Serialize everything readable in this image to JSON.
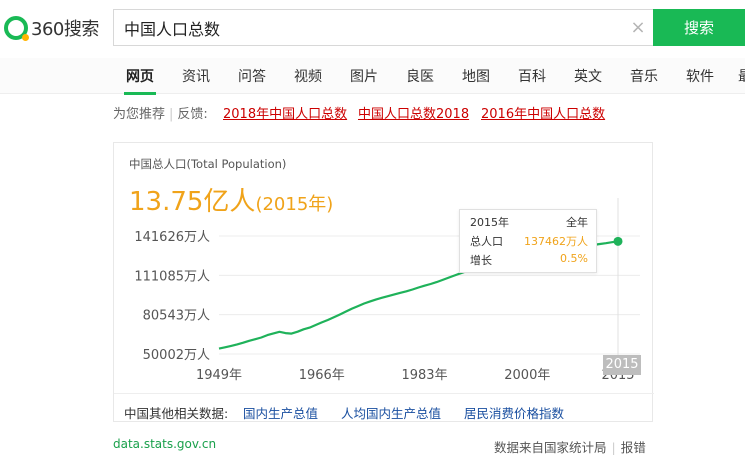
{
  "header": {
    "logo_text": "360搜索",
    "search_value": "中国人口总数",
    "search_button": "搜索",
    "clear_glyph": "×"
  },
  "nav": {
    "items": [
      "网页",
      "资讯",
      "问答",
      "视频",
      "图片",
      "良医",
      "地图",
      "百科",
      "英文",
      "音乐",
      "软件",
      "最"
    ]
  },
  "recommend": {
    "label": "为您推荐",
    "sep": "|",
    "feedback": "反馈:",
    "links": [
      "2018年中国人口总数",
      "中国人口总数2018",
      "2016年中国人口总数"
    ]
  },
  "card": {
    "title": "中国总人口(Total Population)",
    "big_value": "13.75亿人",
    "big_year": "(2015年)",
    "tooltip": {
      "year": "2015年",
      "scope": "全年",
      "total_label": "总人口",
      "total_value": "137462万人",
      "growth_label": "增长",
      "growth_value": "0.5%"
    },
    "year_badge": "2015",
    "related_label": "中国其他相关数据:",
    "related_links": [
      "国内生产总值",
      "人均国内生产总值",
      "居民消费价格指数"
    ]
  },
  "footer": {
    "source_link": "data.stats.gov.cn",
    "source_note": "数据来自国家统计局",
    "sep": "|",
    "report": "报错"
  },
  "colors": {
    "brand_green": "#19b955",
    "highlight_orange": "#f0a31a",
    "link_red": "#cc0000",
    "link_blue": "#1a4fa0",
    "line_green": "#1fb25a"
  },
  "chart_data": {
    "type": "line",
    "title": "中国总人口(Total Population)",
    "xlabel": "",
    "ylabel": "",
    "x_ticks": [
      "1949年",
      "1966年",
      "1983年",
      "2000年",
      "2015"
    ],
    "y_ticks": [
      "50002万人",
      "80543万人",
      "111085万人",
      "141626万人"
    ],
    "y_tick_values": [
      50002,
      80543,
      111085,
      141626
    ],
    "ylim": [
      50002,
      141626
    ],
    "xlim": [
      1949,
      2015
    ],
    "grid": true,
    "series": [
      {
        "x": [
          1949,
          1950,
          1951,
          1952,
          1953,
          1954,
          1955,
          1956,
          1957,
          1958,
          1959,
          1960,
          1961,
          1962,
          1963,
          1964,
          1965,
          1966,
          1967,
          1968,
          1969,
          1970,
          1971,
          1972,
          1973,
          1974,
          1975,
          1976,
          1977,
          1978,
          1979,
          1980,
          1981,
          1982,
          1983,
          1984,
          1985,
          1986,
          1987,
          1988,
          1989,
          1990,
          1991,
          1992,
          1993,
          1994,
          1995,
          1996,
          1997,
          1998,
          1999,
          2000,
          2001,
          2002,
          2003,
          2004,
          2005,
          2006,
          2007,
          2008,
          2009,
          2010,
          2011,
          2012,
          2013,
          2014,
          2015
        ],
        "values": [
          54167,
          55196,
          56300,
          57482,
          58796,
          60266,
          61465,
          62828,
          64653,
          65994,
          67207,
          66207,
          65859,
          67295,
          69172,
          70499,
          72538,
          74542,
          76368,
          78534,
          80671,
          82992,
          85229,
          87177,
          89211,
          90859,
          92420,
          93717,
          94974,
          96259,
          97542,
          98705,
          100072,
          101654,
          103008,
          104357,
          105851,
          107507,
          109300,
          111026,
          112704,
          114333,
          115823,
          117171,
          118517,
          119850,
          121121,
          122389,
          123626,
          124761,
          125786,
          126743,
          127627,
          128453,
          129227,
          129988,
          130756,
          131448,
          132129,
          132802,
          133450,
          134091,
          134735,
          135404,
          136072,
          136782,
          137462
        ]
      }
    ]
  }
}
